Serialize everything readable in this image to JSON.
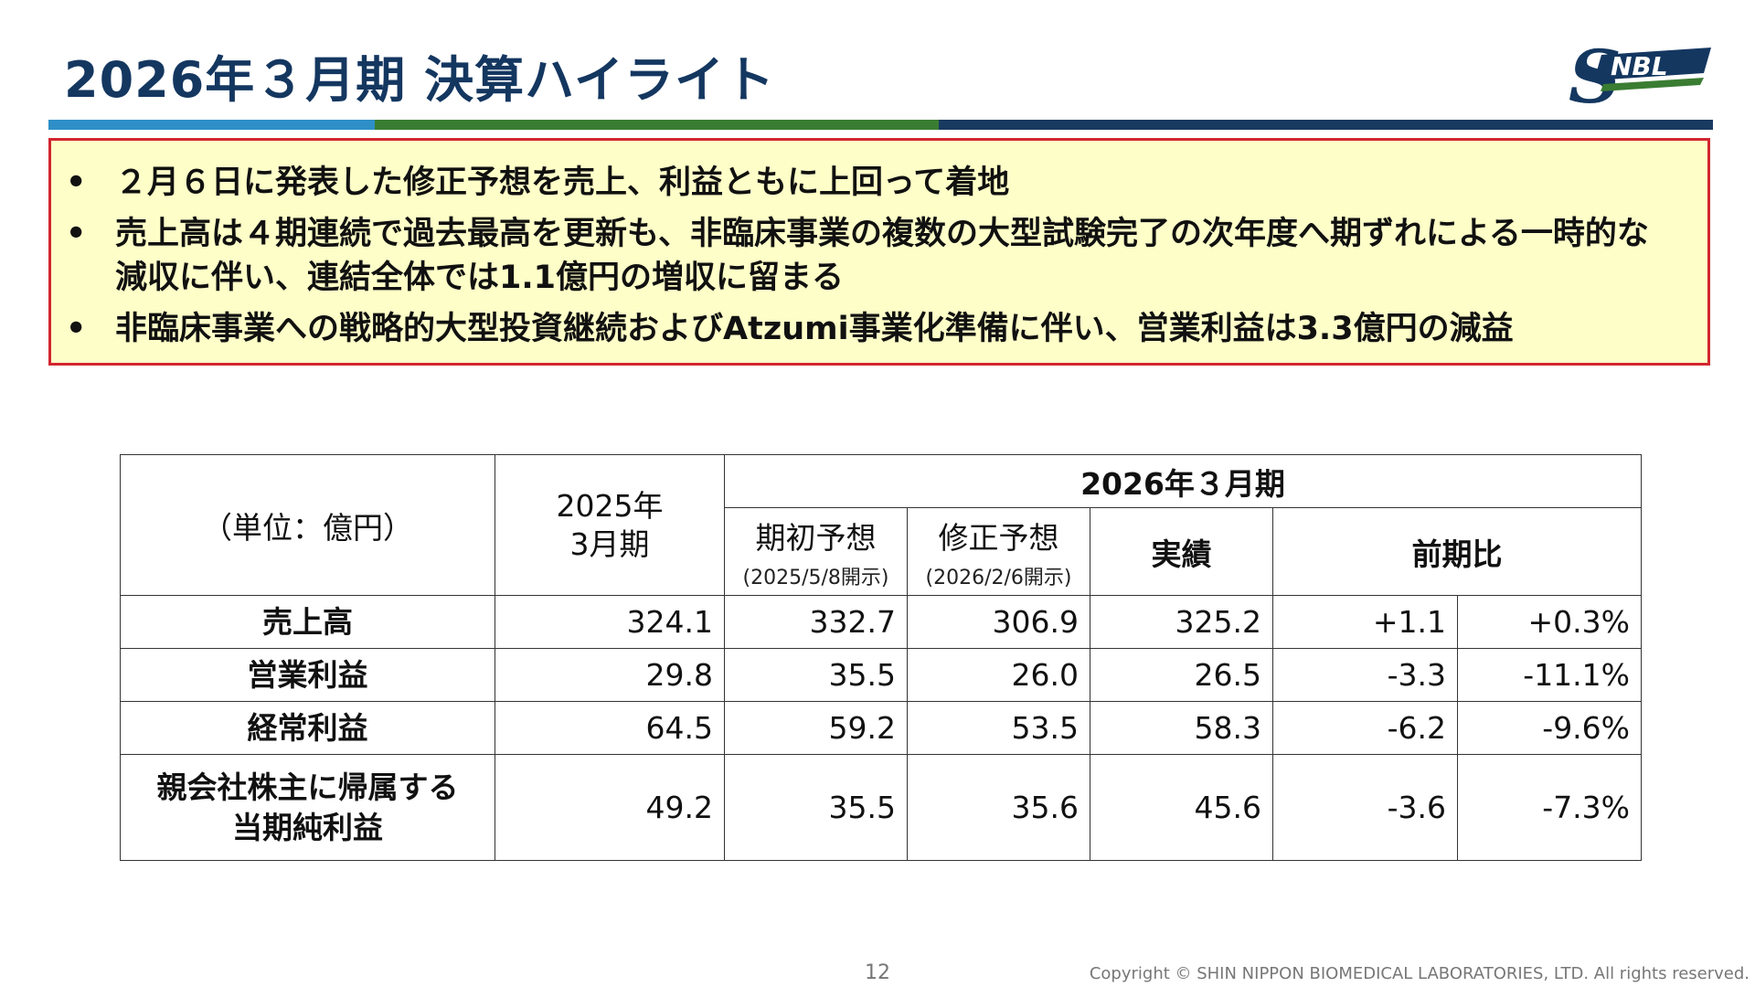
{
  "header": {
    "title": "2026年３月期 決算ハイライト",
    "logo_text": "SNBL",
    "brand_colors": {
      "navy": "#143760",
      "blue": "#2e8fc8",
      "green": "#3a7d32"
    }
  },
  "highlights": [
    "２月６日に発表した修正予想を売上、利益ともに上回って着地",
    "売上高は４期連続で過去最高を更新も、非臨床事業の複数の大型試験完了の次年度へ期ずれによる一時的な減収に伴い、連結全体では1.1億円の増収に留まる",
    "非臨床事業への戦略的大型投資継続およびAtzumi事業化準備に伴い、営業利益は3.3億円の減益"
  ],
  "table": {
    "unit_label": "（単位：億円）",
    "prev_year_label": "2025年\n3月期",
    "current_year_label": "2026年３月期",
    "col_initial_forecast": "期初予想",
    "col_initial_forecast_note": "(2025/5/8開示)",
    "col_revised_forecast": "修正予想",
    "col_revised_forecast_note": "(2026/2/6開示)",
    "col_actual": "実績",
    "col_yoy": "前期比",
    "rows": [
      {
        "label": "売上高",
        "prev": "324.1",
        "initial": "332.7",
        "revised": "306.9",
        "actual": "325.2",
        "diff": "+1.1",
        "pct": "+0.3%"
      },
      {
        "label": "営業利益",
        "prev": "29.8",
        "initial": "35.5",
        "revised": "26.0",
        "actual": "26.5",
        "diff": "-3.3",
        "pct": "-11.1%"
      },
      {
        "label": "経常利益",
        "prev": "64.5",
        "initial": "59.2",
        "revised": "53.5",
        "actual": "58.3",
        "diff": "-6.2",
        "pct": "-9.6%"
      },
      {
        "label": "親会社株主に帰属する\n当期純利益",
        "prev": "49.2",
        "initial": "35.5",
        "revised": "35.6",
        "actual": "45.6",
        "diff": "-3.6",
        "pct": "-7.3%"
      }
    ]
  },
  "footer": {
    "page_number": "12",
    "copyright": "Copyright © SHIN NIPPON BIOMEDICAL LABORATORIES, LTD. All rights reserved."
  }
}
